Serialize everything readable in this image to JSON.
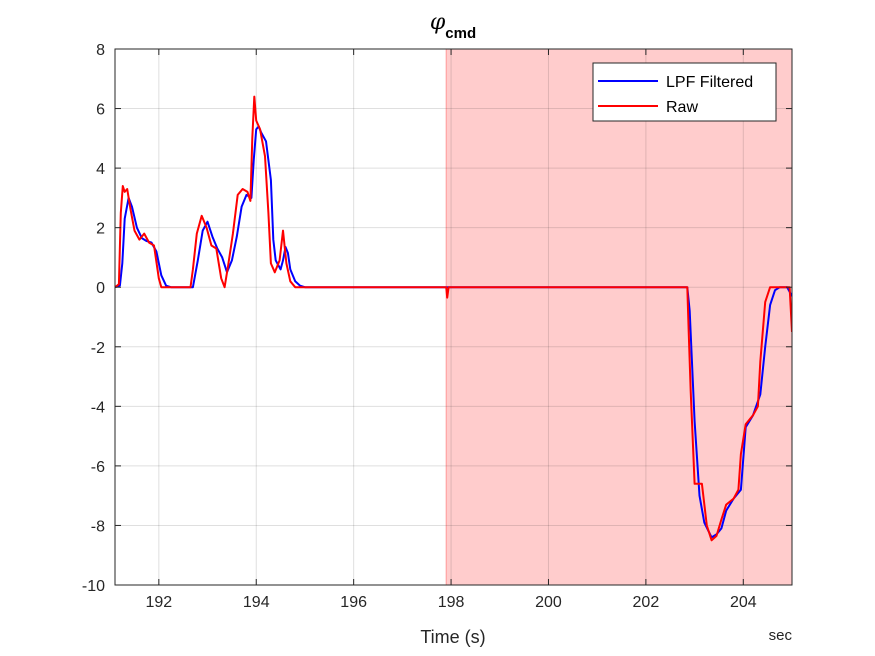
{
  "chart_data": {
    "type": "line",
    "title": "φ",
    "title_subscript": "cmd",
    "xlabel": "Time (s)",
    "x_unit": "sec",
    "xlim": [
      191.1,
      205.0
    ],
    "ylim": [
      -10,
      8
    ],
    "xticks": [
      192,
      194,
      196,
      198,
      200,
      202,
      204
    ],
    "yticks": [
      -10,
      -8,
      -6,
      -4,
      -2,
      0,
      2,
      4,
      6,
      8
    ],
    "grid": true,
    "legend_position": "top-right",
    "shaded_region": {
      "x_start": 197.9,
      "x_end": 205.0,
      "color": "#ffcccc"
    },
    "series": [
      {
        "name": "LPF Filtered",
        "color": "#0000ff",
        "points": [
          [
            191.1,
            0
          ],
          [
            191.2,
            0.05
          ],
          [
            191.25,
            0.8
          ],
          [
            191.3,
            2.3
          ],
          [
            191.38,
            3.0
          ],
          [
            191.45,
            2.7
          ],
          [
            191.55,
            2.0
          ],
          [
            191.65,
            1.65
          ],
          [
            191.75,
            1.55
          ],
          [
            191.85,
            1.5
          ],
          [
            191.95,
            1.2
          ],
          [
            192.05,
            0.4
          ],
          [
            192.15,
            0.05
          ],
          [
            192.25,
            0
          ],
          [
            192.7,
            0
          ],
          [
            192.8,
            0.9
          ],
          [
            192.9,
            1.9
          ],
          [
            193.0,
            2.2
          ],
          [
            193.1,
            1.7
          ],
          [
            193.2,
            1.3
          ],
          [
            193.3,
            1.0
          ],
          [
            193.4,
            0.5
          ],
          [
            193.5,
            0.9
          ],
          [
            193.6,
            1.7
          ],
          [
            193.7,
            2.7
          ],
          [
            193.8,
            3.1
          ],
          [
            193.9,
            3.0
          ],
          [
            193.95,
            4.3
          ],
          [
            194.0,
            5.3
          ],
          [
            194.05,
            5.4
          ],
          [
            194.1,
            5.2
          ],
          [
            194.2,
            4.9
          ],
          [
            194.3,
            3.6
          ],
          [
            194.35,
            1.6
          ],
          [
            194.4,
            0.9
          ],
          [
            194.5,
            0.6
          ],
          [
            194.55,
            0.9
          ],
          [
            194.6,
            1.35
          ],
          [
            194.65,
            1.15
          ],
          [
            194.7,
            0.6
          ],
          [
            194.8,
            0.2
          ],
          [
            194.9,
            0.05
          ],
          [
            195.0,
            0
          ],
          [
            202.85,
            0
          ],
          [
            202.9,
            -0.8
          ],
          [
            203.0,
            -4.5
          ],
          [
            203.1,
            -7.0
          ],
          [
            203.2,
            -7.9
          ],
          [
            203.35,
            -8.4
          ],
          [
            203.45,
            -8.3
          ],
          [
            203.55,
            -8.1
          ],
          [
            203.65,
            -7.5
          ],
          [
            203.8,
            -7.1
          ],
          [
            203.95,
            -6.8
          ],
          [
            204.05,
            -4.7
          ],
          [
            204.2,
            -4.3
          ],
          [
            204.35,
            -3.6
          ],
          [
            204.45,
            -2.0
          ],
          [
            204.55,
            -0.6
          ],
          [
            204.65,
            -0.1
          ],
          [
            204.75,
            0
          ],
          [
            204.9,
            0
          ],
          [
            205.0,
            -0.3
          ]
        ]
      },
      {
        "name": "Raw",
        "color": "#ff0000",
        "points": [
          [
            191.1,
            0
          ],
          [
            191.18,
            0.1
          ],
          [
            191.22,
            2.5
          ],
          [
            191.26,
            3.4
          ],
          [
            191.3,
            3.2
          ],
          [
            191.35,
            3.3
          ],
          [
            191.42,
            2.6
          ],
          [
            191.5,
            1.9
          ],
          [
            191.6,
            1.6
          ],
          [
            191.7,
            1.8
          ],
          [
            191.8,
            1.5
          ],
          [
            191.9,
            1.4
          ],
          [
            192.0,
            0.3
          ],
          [
            192.05,
            0
          ],
          [
            192.65,
            0
          ],
          [
            192.7,
            0.6
          ],
          [
            192.78,
            1.8
          ],
          [
            192.88,
            2.4
          ],
          [
            192.98,
            2.0
          ],
          [
            193.08,
            1.4
          ],
          [
            193.18,
            1.3
          ],
          [
            193.28,
            0.3
          ],
          [
            193.35,
            0
          ],
          [
            193.42,
            0.7
          ],
          [
            193.52,
            1.8
          ],
          [
            193.62,
            3.1
          ],
          [
            193.72,
            3.3
          ],
          [
            193.82,
            3.2
          ],
          [
            193.88,
            2.9
          ],
          [
            193.92,
            5.0
          ],
          [
            193.96,
            6.4
          ],
          [
            194.0,
            5.6
          ],
          [
            194.08,
            5.3
          ],
          [
            194.18,
            4.4
          ],
          [
            194.25,
            2.5
          ],
          [
            194.3,
            0.8
          ],
          [
            194.38,
            0.5
          ],
          [
            194.48,
            0.9
          ],
          [
            194.55,
            1.9
          ],
          [
            194.62,
            0.8
          ],
          [
            194.7,
            0.2
          ],
          [
            194.8,
            0
          ],
          [
            197.9,
            0
          ],
          [
            197.92,
            -0.35
          ],
          [
            197.95,
            0
          ],
          [
            202.85,
            0
          ],
          [
            202.88,
            -1.5
          ],
          [
            202.92,
            -3.5
          ],
          [
            203.0,
            -6.6
          ],
          [
            203.15,
            -6.6
          ],
          [
            203.25,
            -8.0
          ],
          [
            203.35,
            -8.5
          ],
          [
            203.45,
            -8.35
          ],
          [
            203.55,
            -7.8
          ],
          [
            203.65,
            -7.3
          ],
          [
            203.8,
            -7.1
          ],
          [
            203.9,
            -6.8
          ],
          [
            203.95,
            -5.6
          ],
          [
            204.05,
            -4.6
          ],
          [
            204.2,
            -4.3
          ],
          [
            204.3,
            -4.0
          ],
          [
            204.35,
            -2.5
          ],
          [
            204.45,
            -0.5
          ],
          [
            204.55,
            0
          ],
          [
            204.95,
            0
          ],
          [
            205.0,
            -1.5
          ]
        ]
      }
    ]
  }
}
